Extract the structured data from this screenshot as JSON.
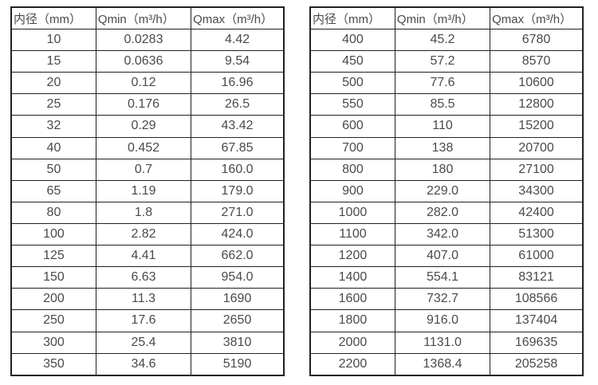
{
  "page": {
    "background": "#ffffff",
    "colors": {
      "border": "#212121",
      "text": "#4a4a4a"
    }
  },
  "tables": [
    {
      "name": "small-diameter-flow-range-table",
      "headers": [
        "内径（mm）",
        "Qmin（m³/h）",
        "Qmax（m³/h）"
      ],
      "rows": [
        [
          "10",
          "0.0283",
          "4.42"
        ],
        [
          "15",
          "0.0636",
          "9.54"
        ],
        [
          "20",
          "0.12",
          "16.96"
        ],
        [
          "25",
          "0.176",
          "26.5"
        ],
        [
          "32",
          "0.29",
          "43.42"
        ],
        [
          "40",
          "0.452",
          "67.85"
        ],
        [
          "50",
          "0.7",
          "160.0"
        ],
        [
          "65",
          "1.19",
          "179.0"
        ],
        [
          "80",
          "1.8",
          "271.0"
        ],
        [
          "100",
          "2.82",
          "424.0"
        ],
        [
          "125",
          "4.41",
          "662.0"
        ],
        [
          "150",
          "6.63",
          "954.0"
        ],
        [
          "200",
          "11.3",
          "1690"
        ],
        [
          "250",
          "17.6",
          "2650"
        ],
        [
          "300",
          "25.4",
          "3810"
        ],
        [
          "350",
          "34.6",
          "5190"
        ]
      ]
    },
    {
      "name": "large-diameter-flow-range-table",
      "headers": [
        "内径（mm）",
        "Qmin（m³/h）",
        "Qmax（m³/h）"
      ],
      "rows": [
        [
          "400",
          "45.2",
          "6780"
        ],
        [
          "450",
          "57.2",
          "8570"
        ],
        [
          "500",
          "77.6",
          "10600"
        ],
        [
          "550",
          "85.5",
          "12800"
        ],
        [
          "600",
          "110",
          "15200"
        ],
        [
          "700",
          "138",
          "20700"
        ],
        [
          "800",
          "180",
          "27100"
        ],
        [
          "900",
          "229.0",
          "34300"
        ],
        [
          "1000",
          "282.0",
          "42400"
        ],
        [
          "1100",
          "342.0",
          "51300"
        ],
        [
          "1200",
          "407.0",
          "61000"
        ],
        [
          "1400",
          "554.1",
          "83121"
        ],
        [
          "1600",
          "732.7",
          "108566"
        ],
        [
          "1800",
          "916.0",
          "137404"
        ],
        [
          "2000",
          "1131.0",
          "169635"
        ],
        [
          "2200",
          "1368.4",
          "205258"
        ]
      ]
    }
  ]
}
